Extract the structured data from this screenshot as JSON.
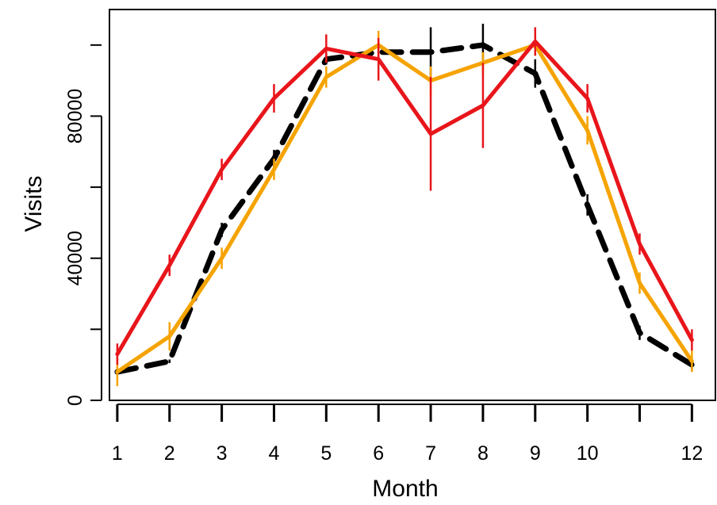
{
  "chart_data": {
    "type": "line",
    "title": "",
    "xlabel": "Month",
    "ylabel": "Visits",
    "xlim": [
      0.85,
      12.45
    ],
    "ylim": [
      0,
      110000
    ],
    "x_ticks": [
      1,
      2,
      3,
      4,
      5,
      6,
      7,
      8,
      9,
      10,
      11,
      12
    ],
    "x_tick_labels": [
      "1",
      "2",
      "3",
      "4",
      "5",
      "6",
      "7",
      "8",
      "9",
      "10",
      "",
      "12"
    ],
    "y_ticks": [
      0,
      40000,
      80000
    ],
    "y_tick_labels": [
      "0",
      "40000",
      "80000"
    ],
    "grid": false,
    "legend": "none",
    "x": [
      1,
      2,
      3,
      4,
      5,
      6,
      7,
      8,
      9,
      10,
      11,
      12
    ],
    "series": [
      {
        "color": "#000000",
        "line_style": "dashed",
        "values": [
          8000,
          11000,
          48000,
          68000,
          96000,
          98000,
          98000,
          100000,
          92000,
          55000,
          19000,
          10000
        ],
        "error": [
          500,
          500,
          2000,
          2500,
          1500,
          2000,
          7000,
          6000,
          4000,
          3000,
          2000,
          1500
        ]
      },
      {
        "color": "#f5a300",
        "line_style": "solid",
        "values": [
          8000,
          18000,
          40000,
          65000,
          91000,
          100000,
          90000,
          95000,
          100000,
          76000,
          33000,
          11000
        ],
        "error": [
          4000,
          4000,
          3000,
          3000,
          3000,
          4000,
          4000,
          3000,
          3000,
          4000,
          3000,
          3000
        ]
      },
      {
        "color": "#e8151b",
        "line_style": "solid",
        "values": [
          13000,
          38000,
          65000,
          85000,
          99000,
          96000,
          75000,
          83000,
          101000,
          85000,
          44000,
          17000
        ],
        "error": [
          3000,
          3000,
          3000,
          4000,
          4000,
          6000,
          16000,
          12000,
          4000,
          4000,
          3000,
          3000
        ]
      }
    ]
  }
}
